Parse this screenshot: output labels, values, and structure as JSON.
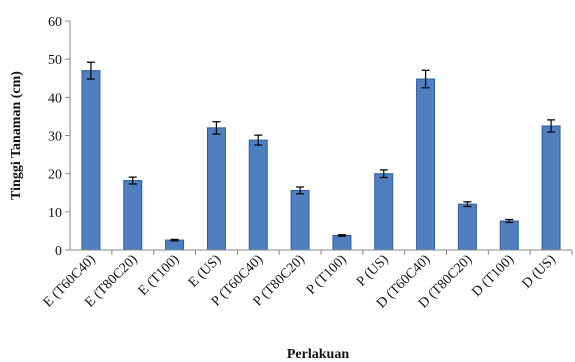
{
  "chart_data": {
    "type": "bar",
    "title": "",
    "xlabel": "Perlakuan",
    "ylabel": "Tinggi Tanaman (cm)",
    "ylim": [
      0,
      60
    ],
    "yticks": [
      "0",
      "10",
      "20",
      "30",
      "40",
      "50",
      "60"
    ],
    "grid": false,
    "legend": "none",
    "bar_color": "#4f7fbf",
    "bar_edge_color": "#2f5f9a",
    "categories": [
      "E (T60C40)",
      "E (T80C20)",
      "E (T100)",
      "E (US)",
      "P (T60C40)",
      "P (T80C20)",
      "P (T100)",
      "P (US)",
      "D (T60C40)",
      "D (T80C20)",
      "D (T100)",
      "D (US)"
    ],
    "values": [
      47.0,
      18.2,
      2.6,
      32.0,
      28.8,
      15.6,
      3.8,
      20.0,
      44.8,
      12.0,
      7.6,
      32.5
    ],
    "errors": [
      2.2,
      0.9,
      0.2,
      1.6,
      1.3,
      0.9,
      0.2,
      1.0,
      2.3,
      0.6,
      0.4,
      1.6
    ]
  }
}
